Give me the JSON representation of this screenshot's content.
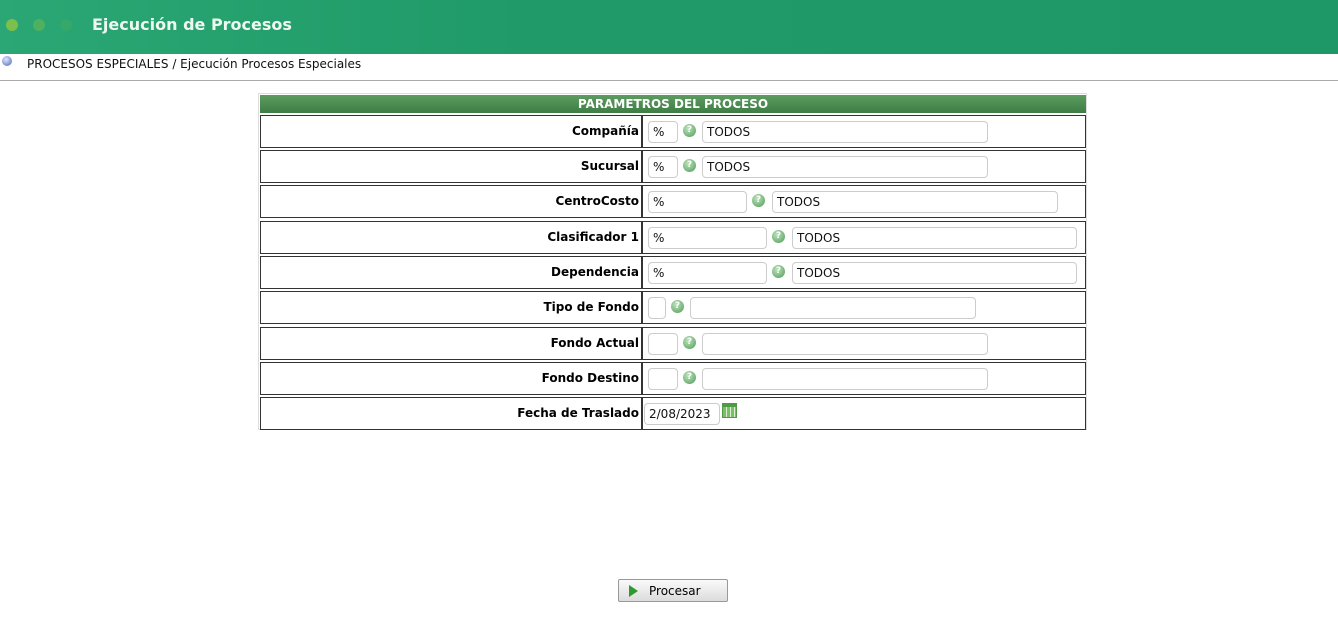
{
  "header": {
    "title": "Ejecución de Procesos",
    "window_dot_colors": [
      "#7dbf4c",
      "#4fb060",
      "#35a86a"
    ]
  },
  "breadcrumb": "PROCESOS ESPECIALES / Ejecución Procesos Especiales",
  "panel": {
    "title": "PARAMETROS DEL PROCESO",
    "rows": [
      {
        "label": "Compañía",
        "code": "%",
        "description": "TODOS"
      },
      {
        "label": "Sucursal",
        "code": "%",
        "description": "TODOS"
      },
      {
        "label": "CentroCosto",
        "code": "%",
        "description": "TODOS"
      },
      {
        "label": "Clasificador 1",
        "code": "%",
        "description": "TODOS"
      },
      {
        "label": "Dependencia",
        "code": "%",
        "description": "TODOS"
      },
      {
        "label": "Tipo de Fondo",
        "code": "",
        "description": ""
      },
      {
        "label": "Fondo Actual",
        "code": "",
        "description": ""
      },
      {
        "label": "Fondo Destino",
        "code": "",
        "description": ""
      },
      {
        "label": "Fecha de Traslado",
        "date": "2/08/2023"
      }
    ]
  },
  "help_glyph": "?",
  "process_button": "Procesar"
}
